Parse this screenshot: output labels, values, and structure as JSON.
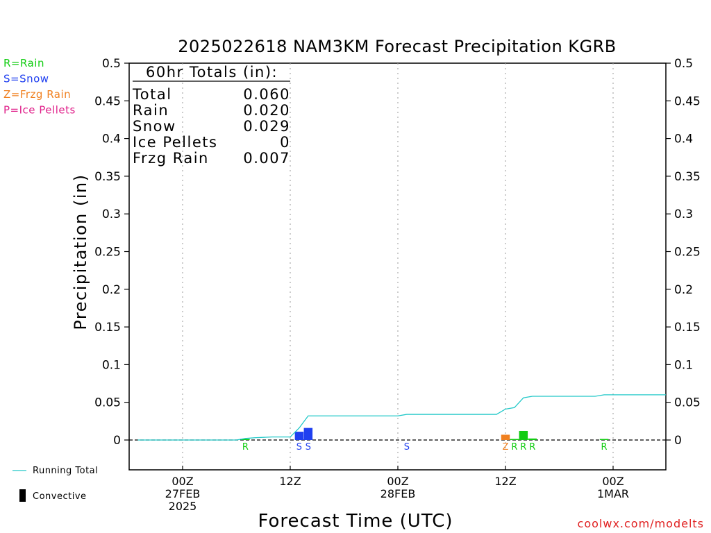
{
  "chart_data": {
    "type": "bar",
    "title": "2025022618 NAM3KM Forecast Precipitation KGRB",
    "xlabel": "Forecast Time (UTC)",
    "ylabel": "Precipitation (in)",
    "ylim": [
      0,
      0.5
    ],
    "y_ticks": [
      "0",
      "0.05",
      "0.1",
      "0.15",
      "0.2",
      "0.25",
      "0.3",
      "0.35",
      "0.4",
      "0.45",
      "0.5"
    ],
    "y_tick_values": [
      0,
      0.05,
      0.1,
      0.15,
      0.2,
      0.25,
      0.3,
      0.35,
      0.4,
      0.45,
      0.5
    ],
    "xlim": [
      -4,
      56
    ],
    "x_ticks": [
      {
        "hour": 0,
        "lines": [
          "00Z",
          "27FEB",
          "2025"
        ]
      },
      {
        "hour": 12,
        "lines": [
          "12Z"
        ]
      },
      {
        "hour": 24,
        "lines": [
          "00Z",
          "28FEB"
        ]
      },
      {
        "hour": 36,
        "lines": [
          "12Z"
        ]
      },
      {
        "hour": 48,
        "lines": [
          "00Z",
          "1MAR"
        ]
      }
    ],
    "grid": true,
    "bars": [
      {
        "hour": 13,
        "value": 0.011,
        "type": "S"
      },
      {
        "hour": 14,
        "value": 0.016,
        "type": "S"
      },
      {
        "hour": 36,
        "value": 0.007,
        "type": "Z"
      },
      {
        "hour": 37,
        "value": 0.001,
        "type": "R"
      },
      {
        "hour": 38,
        "value": 0.012,
        "type": "R"
      },
      {
        "hour": 39,
        "value": 0.002,
        "type": "R"
      },
      {
        "hour": 7,
        "value": 0.001,
        "type": "R"
      },
      {
        "hour": 47,
        "value": 0.001,
        "type": "R"
      }
    ],
    "precip_type_labels": [
      {
        "hour": 7,
        "type": "R",
        "text": "R"
      },
      {
        "hour": 13,
        "type": "S",
        "text": "S"
      },
      {
        "hour": 14,
        "type": "S",
        "text": "S"
      },
      {
        "hour": 25,
        "type": "S",
        "text": "S"
      },
      {
        "hour": 36,
        "type": "Z",
        "text": "Z"
      },
      {
        "hour": 37,
        "type": "R",
        "text": "R"
      },
      {
        "hour": 38,
        "type": "R",
        "text": "R"
      },
      {
        "hour": 39,
        "type": "R",
        "text": "R"
      },
      {
        "hour": 47,
        "type": "R",
        "text": "R"
      }
    ],
    "running_total": {
      "name": "Running Total",
      "color": "#20c8c8",
      "points": [
        [
          -5,
          0
        ],
        [
          0,
          0
        ],
        [
          6,
          0
        ],
        [
          7,
          0.002
        ],
        [
          8,
          0.003
        ],
        [
          10,
          0.004
        ],
        [
          12,
          0.004
        ],
        [
          13,
          0.016
        ],
        [
          14,
          0.032
        ],
        [
          20,
          0.032
        ],
        [
          24,
          0.032
        ],
        [
          25,
          0.034
        ],
        [
          35,
          0.034
        ],
        [
          36,
          0.041
        ],
        [
          37,
          0.043
        ],
        [
          38,
          0.056
        ],
        [
          39,
          0.058
        ],
        [
          46,
          0.058
        ],
        [
          47,
          0.06
        ],
        [
          56,
          0.06
        ]
      ]
    },
    "type_colors": {
      "R": "#10cc10",
      "S": "#2040f0",
      "Z": "#f08020",
      "P": "#e0208a"
    }
  },
  "legend": {
    "types": [
      {
        "text": "R=Rain",
        "color": "#10cc10"
      },
      {
        "text": "S=Snow",
        "color": "#2040f0"
      },
      {
        "text": "Z=Frzg Rain",
        "color": "#f08020"
      },
      {
        "text": "P=Ice Pellets",
        "color": "#e0208a"
      }
    ],
    "running_total_label": "Running Total",
    "convective_label": "Convective"
  },
  "totals": {
    "header": "60hr Totals (in):",
    "rows": [
      {
        "label": "Total",
        "value": "0.060"
      },
      {
        "label": "Rain",
        "value": "0.020"
      },
      {
        "label": "Snow",
        "value": "0.029"
      },
      {
        "label": "Ice Pellets",
        "value": "0"
      },
      {
        "label": "Frzg Rain",
        "value": "0.007"
      }
    ]
  },
  "credit": "coolwx.com/modelts"
}
